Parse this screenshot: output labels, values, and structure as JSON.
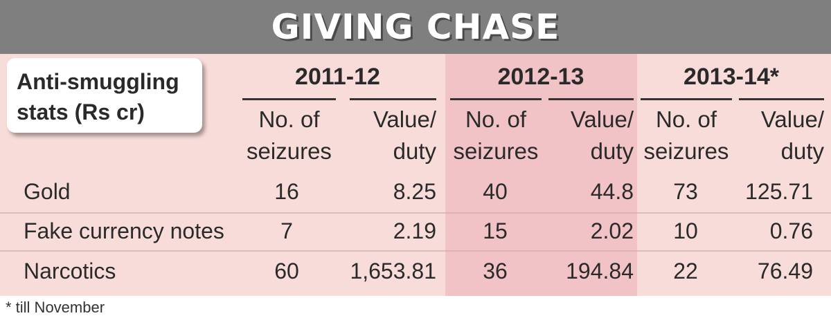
{
  "chart_data": {
    "type": "table",
    "title": "GIVING CHASE",
    "row_header": "Anti-smuggling stats (Rs cr)",
    "years": [
      "2011-12",
      "2012-13",
      "2013-14*"
    ],
    "subheaders": [
      "No. of seizures",
      "Value/ duty"
    ],
    "rows": [
      {
        "label": "Gold",
        "values": [
          "16",
          "8.25",
          "40",
          "44.8",
          "73",
          "125.71"
        ]
      },
      {
        "label": "Fake currency notes",
        "values": [
          "7",
          "2.19",
          "15",
          "2.02",
          "10",
          "0.76"
        ]
      },
      {
        "label": "Narcotics",
        "values": [
          "60",
          "1,653.81",
          "36",
          "194.84",
          "22",
          "76.49"
        ]
      }
    ],
    "footnote": "* till November"
  },
  "colors": {
    "banner": "#7f7f7f",
    "panel": "#f8dcd9",
    "highlight": "#f1c2c6"
  },
  "labels": {
    "sub_line1_a": "No. of",
    "sub_line2_a": "seizures",
    "sub_line1_b": "Value/",
    "sub_line2_b": "duty",
    "row_header_line1": "Anti-smuggling",
    "row_header_line2": "stats (Rs cr)"
  }
}
